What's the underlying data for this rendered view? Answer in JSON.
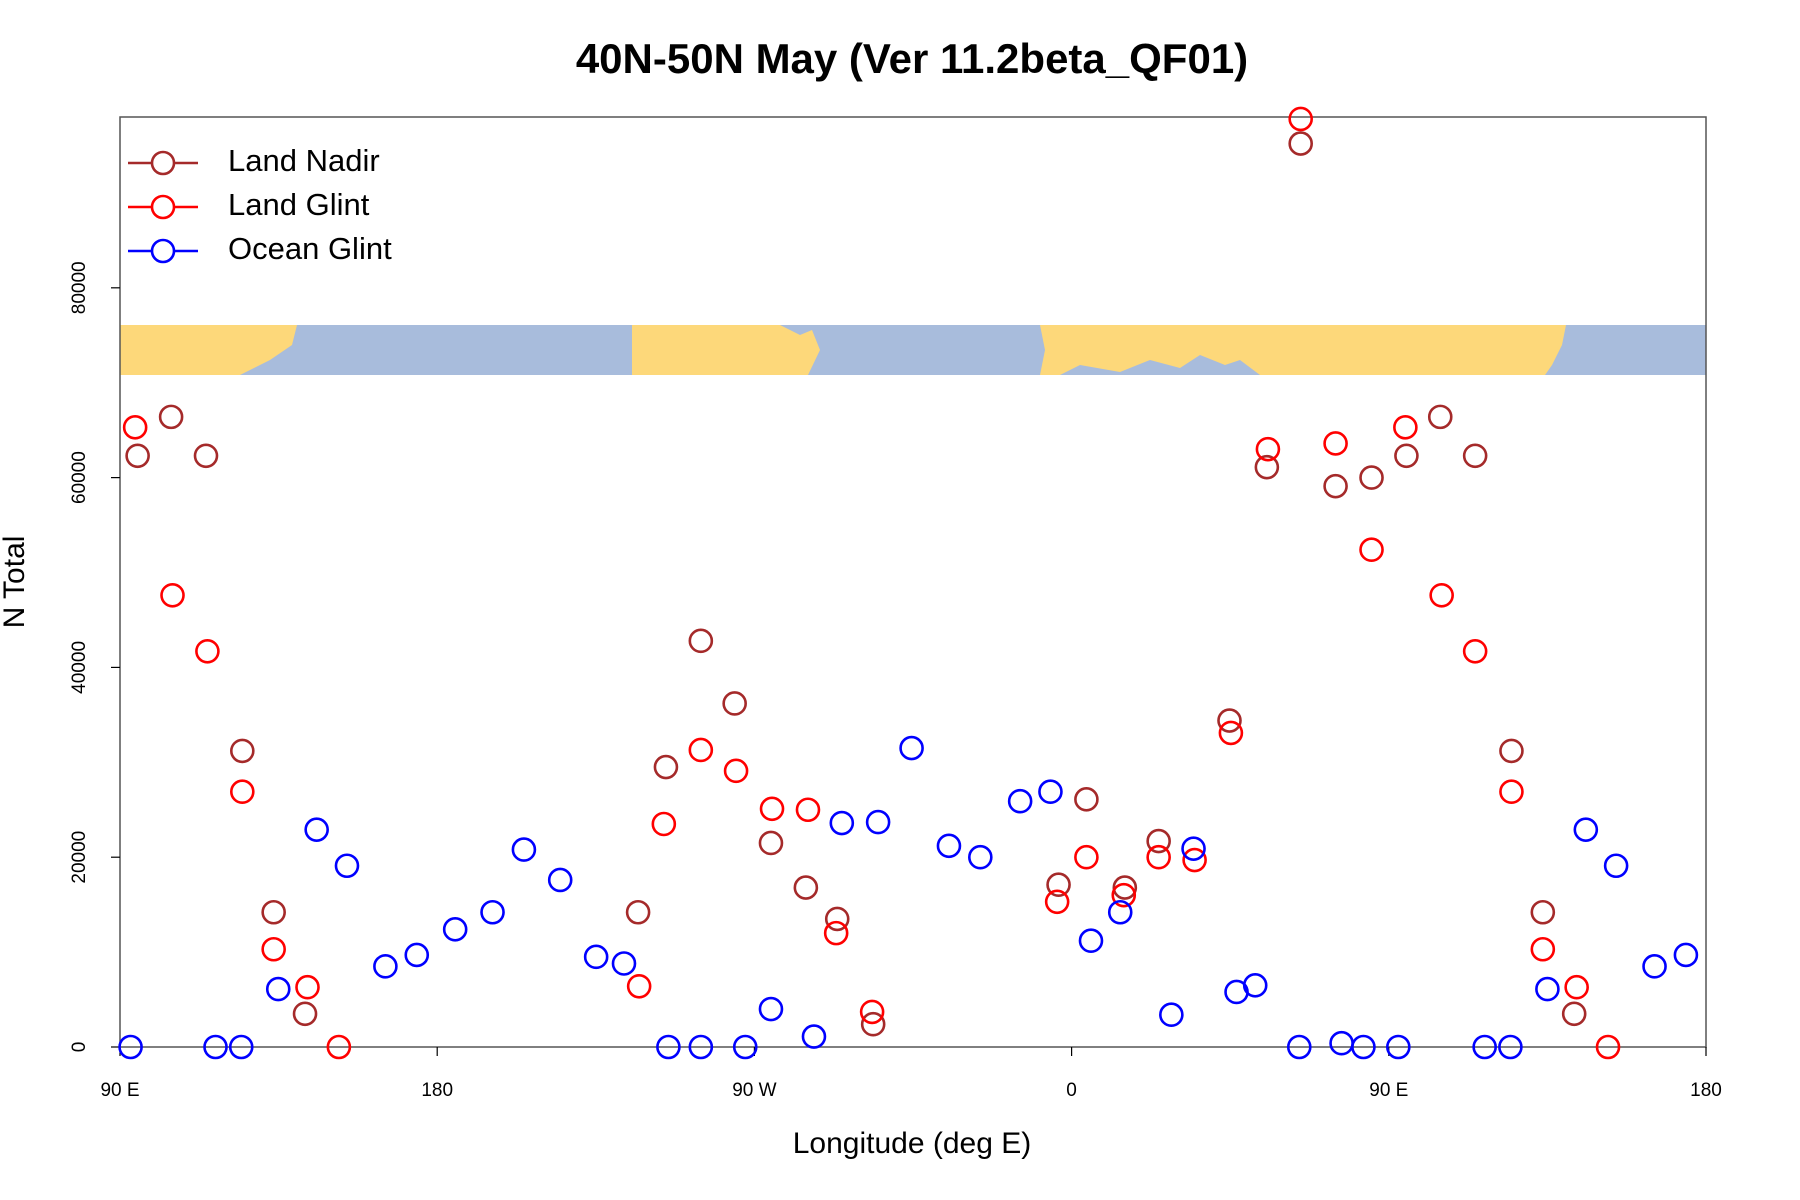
{
  "chart_data": {
    "type": "scatter",
    "title": "40N-50N May (Ver 11.2beta_QF01)",
    "xlabel": "Longitude (deg E)",
    "ylabel": "N Total",
    "xlim": [
      90,
      540
    ],
    "ylim": [
      0,
      98000
    ],
    "xticks": [
      {
        "value": 90,
        "label": "90 E"
      },
      {
        "value": 180,
        "label": "180"
      },
      {
        "value": 270,
        "label": "90 W"
      },
      {
        "value": 360,
        "label": "0"
      },
      {
        "value": 450,
        "label": "90 E"
      },
      {
        "value": 540,
        "label": "180"
      }
    ],
    "yticks": [
      0,
      20000,
      40000,
      60000,
      80000
    ],
    "legend": "topleft",
    "series": [
      {
        "name": "Land Nadir",
        "color": "#a52a2a",
        "x": [
          95.0,
          104.5,
          114.4,
          124.7,
          133.6,
          142.5,
          237.0,
          244.9,
          254.8,
          264.4,
          274.7,
          284.6,
          293.5,
          303.7,
          356.3,
          364.2,
          375.1,
          384.7,
          404.8,
          415.4,
          425.0,
          434.9,
          445.1,
          455.0,
          464.6,
          474.5,
          484.8,
          493.7,
          502.6
        ],
        "values": [
          62300,
          66400,
          62300,
          31200,
          14200,
          3500,
          14200,
          29500,
          42800,
          36200,
          21500,
          16800,
          13500,
          2400,
          17100,
          26100,
          16800,
          21700,
          34400,
          61100,
          95200,
          59100,
          60000,
          62300,
          66400,
          62300,
          31200,
          14200,
          3500
        ]
      },
      {
        "name": "Land Glint",
        "color": "#ff0000",
        "x": [
          94.3,
          104.9,
          114.8,
          124.7,
          133.6,
          143.2,
          152.1,
          237.3,
          244.3,
          254.8,
          264.8,
          275.0,
          285.2,
          293.2,
          303.4,
          355.9,
          364.2,
          374.8,
          384.7,
          394.9,
          405.2,
          415.7,
          425.0,
          434.9,
          445.1,
          454.7,
          465.0,
          474.5,
          484.8,
          493.7,
          503.3,
          512.2
        ],
        "values": [
          65300,
          47600,
          41700,
          26900,
          10300,
          6300,
          0,
          6400,
          23500,
          31300,
          29100,
          25100,
          25000,
          12000,
          3700,
          15300,
          20000,
          16000,
          20000,
          19700,
          33100,
          63000,
          97800,
          63600,
          52400,
          65300,
          47600,
          41700,
          26900,
          10300,
          6300,
          0
        ]
      },
      {
        "name": "Ocean Glint",
        "color": "#0000ff",
        "x": [
          93.0,
          117.1,
          124.4,
          134.9,
          145.8,
          154.4,
          165.3,
          174.2,
          185.1,
          195.7,
          204.6,
          214.9,
          225.1,
          233.0,
          245.6,
          254.8,
          267.4,
          274.7,
          286.9,
          294.8,
          305.1,
          314.6,
          325.2,
          334.1,
          345.4,
          354.0,
          365.5,
          373.8,
          388.3,
          394.6,
          406.8,
          412.1,
          424.6,
          436.6,
          442.8,
          452.7,
          477.2,
          484.5,
          495.0,
          505.9,
          514.5,
          525.4,
          534.3
        ],
        "values": [
          0,
          0,
          0,
          6100,
          22900,
          19100,
          8500,
          9700,
          12400,
          14200,
          20800,
          17600,
          9500,
          8800,
          0,
          0,
          0,
          4000,
          1100,
          23600,
          23700,
          31500,
          21200,
          20000,
          25900,
          26900,
          11200,
          14200,
          3400,
          20900,
          5800,
          6500,
          0,
          400,
          0,
          0,
          0,
          0,
          6100,
          22900,
          19100,
          8500,
          9700
        ]
      }
    ]
  }
}
